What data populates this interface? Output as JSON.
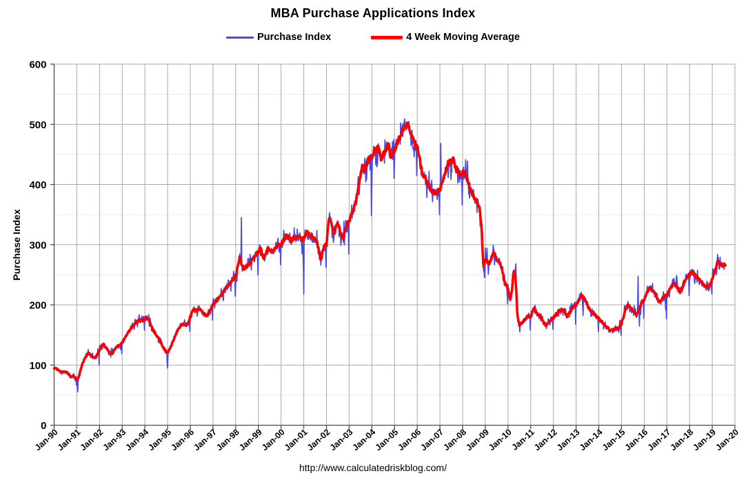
{
  "title": "MBA Purchase Applications Index",
  "footer_url": "http://www.calculatedriskblog.com/",
  "colors": {
    "purchase_index": "#4a4ae0",
    "moving_average": "#ff0000",
    "grid_major": "#a8a8a8",
    "grid_minor": "#ebebeb",
    "axis": "#4d4d4d",
    "text": "#000000",
    "background": "#ffffff"
  },
  "legend": [
    {
      "label": "Purchase Index",
      "series": "purchase_index"
    },
    {
      "label": "4 Week Moving Average",
      "series": "moving_average"
    }
  ],
  "y_axis": {
    "label": "Purchase Index",
    "min": 0,
    "max": 600,
    "major_step": 100,
    "minor_step": 50,
    "tick_labels": [
      "0",
      "100",
      "200",
      "300",
      "400",
      "500",
      "600"
    ]
  },
  "x_axis": {
    "min": 1990,
    "max": 2020,
    "tick_labels": [
      "Jan-90",
      "Jan-91",
      "Jan-92",
      "Jan-93",
      "Jan-94",
      "Jan-95",
      "Jan-96",
      "Jan-97",
      "Jan-98",
      "Jan-99",
      "Jan-00",
      "Jan-01",
      "Jan-02",
      "Jan-03",
      "Jan-04",
      "Jan-05",
      "Jan-06",
      "Jan-07",
      "Jan-08",
      "Jan-09",
      "Jan-10",
      "Jan-11",
      "Jan-12",
      "Jan-13",
      "Jan-14",
      "Jan-15",
      "Jan-16",
      "Jan-17",
      "Jan-18",
      "Jan-19",
      "Jan-20"
    ]
  },
  "chart_data": {
    "type": "line",
    "title": "MBA Purchase Applications Index",
    "xlabel": "",
    "ylabel": "Purchase Index",
    "x_range": [
      1990,
      2020
    ],
    "y_range": [
      0,
      600
    ],
    "grid": true,
    "legend_position": "top",
    "data_end_year": 2019.583,
    "series": [
      {
        "name": "4 Week Moving Average",
        "color": "#ff0000",
        "stroke_width": 3.6,
        "sampling": "monthly",
        "start": "Jan-1990",
        "end": "Aug-2019",
        "render_jitter": 0.011,
        "values": [
          95,
          94,
          92,
          90,
          89,
          88,
          89,
          87,
          84,
          80,
          82,
          80,
          75,
          80,
          92,
          102,
          110,
          116,
          120,
          118,
          114,
          112,
          113,
          118,
          125,
          132,
          135,
          130,
          127,
          122,
          118,
          120,
          126,
          130,
          132,
          134,
          137,
          143,
          148,
          153,
          158,
          162,
          167,
          170,
          172,
          174,
          174,
          175,
          176,
          180,
          176,
          168,
          160,
          155,
          150,
          145,
          140,
          133,
          128,
          123,
          120,
          126,
          133,
          140,
          148,
          155,
          162,
          166,
          169,
          168,
          166,
          170,
          180,
          188,
          193,
          190,
          192,
          194,
          190,
          186,
          183,
          182,
          188,
          195,
          200,
          204,
          208,
          211,
          215,
          220,
          224,
          228,
          232,
          235,
          239,
          244,
          248,
          262,
          280,
          270,
          260,
          262,
          264,
          268,
          272,
          276,
          280,
          286,
          288,
          298,
          284,
          278,
          286,
          294,
          292,
          288,
          291,
          295,
          300,
          302,
          301,
          306,
          311,
          314,
          312,
          308,
          309,
          312,
          310,
          311,
          313,
          308,
          310,
          317,
          320,
          316,
          313,
          310,
          308,
          306,
          290,
          272,
          288,
          298,
          300,
          338,
          344,
          326,
          318,
          330,
          334,
          326,
          314,
          312,
          326,
          334,
          340,
          348,
          356,
          365,
          378,
          395,
          415,
          430,
          424,
          432,
          440,
          443,
          445,
          452,
          458,
          463,
          455,
          440,
          448,
          456,
          462,
          466,
          444,
          452,
          458,
          466,
          474,
          480,
          488,
          495,
          500,
          497,
          492,
          482,
          472,
          465,
          462,
          448,
          428,
          417,
          411,
          405,
          400,
          394,
          388,
          385,
          387,
          390,
          393,
          400,
          410,
          422,
          433,
          439,
          437,
          441,
          432,
          424,
          419,
          415,
          418,
          422,
          412,
          402,
          394,
          386,
          380,
          374,
          370,
          358,
          330,
          260,
          278,
          272,
          268,
          276,
          286,
          284,
          276,
          272,
          268,
          258,
          238,
          232,
          228,
          208,
          222,
          256,
          246,
          182,
          167,
          170,
          173,
          176,
          180,
          181,
          180,
          190,
          194,
          187,
          184,
          181,
          176,
          169,
          166,
          168,
          173,
          177,
          179,
          183,
          186,
          189,
          191,
          193,
          189,
          181,
          184,
          189,
          195,
          199,
          201,
          206,
          211,
          215,
          213,
          206,
          199,
          193,
          189,
          186,
          183,
          179,
          177,
          173,
          171,
          167,
          163,
          161,
          159,
          157,
          159,
          161,
          159,
          163,
          171,
          179,
          193,
          199,
          197,
          194,
          191,
          186,
          183,
          189,
          199,
          206,
          208,
          217,
          223,
          229,
          226,
          221,
          217,
          211,
          204,
          206,
          212,
          215,
          216,
          223,
          229,
          233,
          235,
          232,
          226,
          222,
          228,
          237,
          241,
          246,
          251,
          255,
          252,
          249,
          246,
          242,
          238,
          235,
          232,
          230,
          229,
          235,
          245,
          253,
          261,
          273,
          268,
          264,
          266,
          268
        ]
      },
      {
        "name": "Purchase Index",
        "color": "#4a4ae0",
        "stroke_width": 1.7,
        "sampling": "weekly",
        "derivation": "moving_average_plus_weekly_volatility",
        "noise": {
          "amp_small": 0.022,
          "amp_spike": 0.06
        },
        "holiday_dip": {
          "amp": 0.12,
          "phase": 0.981,
          "width": 0.011
        },
        "spikes": [
          [
            1991.04,
            55
          ],
          [
            1995.0,
            95
          ],
          [
            1998.25,
            345
          ],
          [
            2001.0,
            218
          ],
          [
            2003.99,
            300
          ],
          [
            2005.45,
            529
          ],
          [
            2007.04,
            470
          ],
          [
            2008.96,
            245
          ],
          [
            2010.35,
            272
          ],
          [
            2010.52,
            155
          ],
          [
            2013.3,
            162
          ],
          [
            2015.73,
            248
          ],
          [
            2015.79,
            164
          ],
          [
            2016.94,
            191
          ],
          [
            2019.35,
            281
          ]
        ]
      }
    ]
  }
}
